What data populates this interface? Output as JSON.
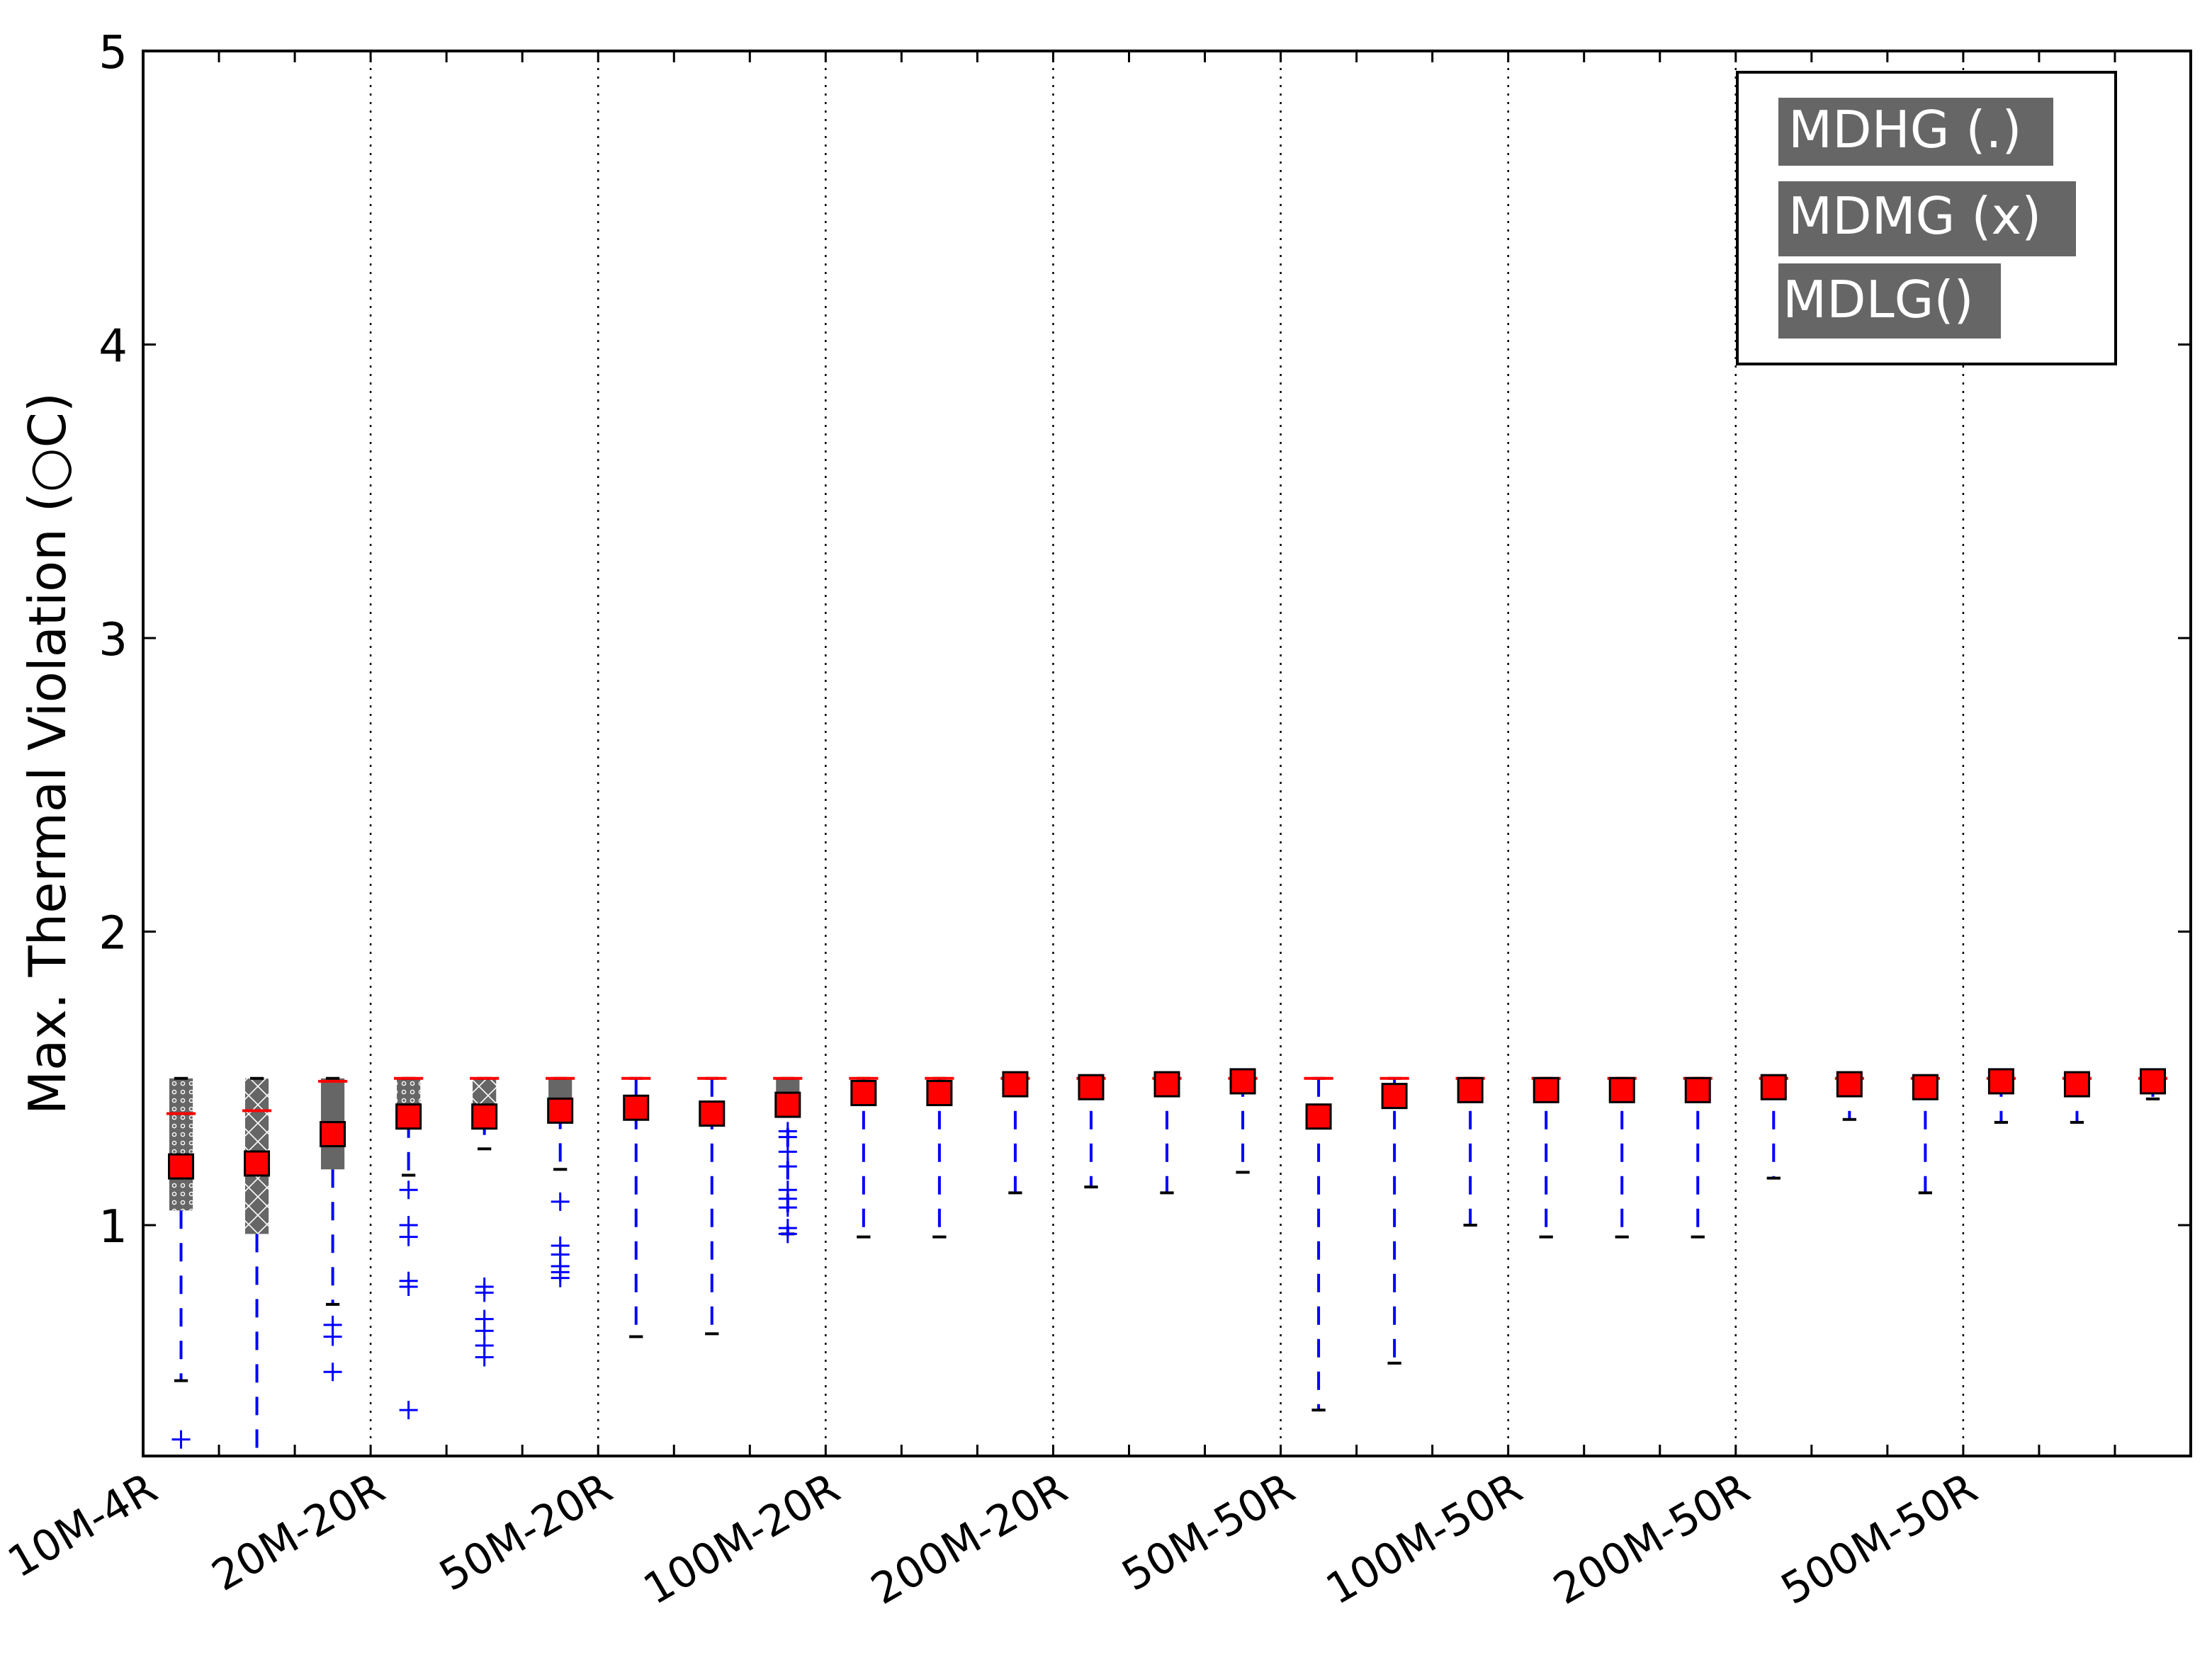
{
  "chart_data": {
    "type": "box",
    "ylabel": "Max. Thermal Violation (○C)",
    "xlabel": "",
    "ylim": [
      0.18,
      5
    ],
    "yticks": [
      1,
      2,
      3,
      4,
      5
    ],
    "grid": "vertical dotted separators between groups",
    "categories": [
      "10M-4R",
      "20M-20R",
      "50M-20R",
      "100M-20R",
      "200M-20R",
      "50M-50R",
      "100M-50R",
      "200M-50R",
      "500M-50R"
    ],
    "legend": {
      "placement": "top-right",
      "entries": [
        "MDHG (.)",
        "MDMG (x)",
        "MDLG()"
      ]
    },
    "series": [
      {
        "name": "MDHG (.)",
        "boxes": [
          {
            "group": "10M-4R",
            "q1": 1.05,
            "median": 1.38,
            "q3": 1.5,
            "wlow": 0.47,
            "whigh": 1.5,
            "mean": 1.2,
            "outliers": [
              0.27
            ]
          },
          {
            "group": "20M-20R",
            "q1": 1.36,
            "median": 1.5,
            "q3": 1.5,
            "wlow": 1.17,
            "whigh": 1.5,
            "mean": 1.37,
            "outliers": [
              1.12,
              1.0,
              0.96,
              0.81,
              0.79,
              0.37
            ]
          },
          {
            "group": "50M-20R",
            "q1": 1.5,
            "median": 1.5,
            "q3": 1.5,
            "wlow": 0.62,
            "whigh": 1.5,
            "mean": 1.4,
            "outliers": []
          },
          {
            "group": "100M-20R",
            "q1": 1.5,
            "median": 1.5,
            "q3": 1.5,
            "wlow": 0.96,
            "whigh": 1.5,
            "mean": 1.45,
            "outliers": []
          },
          {
            "group": "200M-20R",
            "q1": 1.5,
            "median": 1.5,
            "q3": 1.5,
            "wlow": 1.13,
            "whigh": 1.5,
            "mean": 1.47,
            "outliers": []
          },
          {
            "group": "50M-50R",
            "q1": 1.5,
            "median": 1.5,
            "q3": 1.5,
            "wlow": 0.37,
            "whigh": 1.5,
            "mean": 1.37,
            "outliers": []
          },
          {
            "group": "100M-50R",
            "q1": 1.5,
            "median": 1.5,
            "q3": 1.5,
            "wlow": 0.96,
            "whigh": 1.5,
            "mean": 1.46,
            "outliers": []
          },
          {
            "group": "200M-50R",
            "q1": 1.5,
            "median": 1.5,
            "q3": 1.5,
            "wlow": 1.16,
            "whigh": 1.5,
            "mean": 1.47,
            "outliers": []
          },
          {
            "group": "500M-50R",
            "q1": 1.5,
            "median": 1.5,
            "q3": 1.5,
            "wlow": 1.35,
            "whigh": 1.5,
            "mean": 1.49,
            "outliers": []
          }
        ]
      },
      {
        "name": "MDMG (x)",
        "boxes": [
          {
            "group": "10M-4R",
            "q1": 0.97,
            "median": 1.39,
            "q3": 1.5,
            "wlow": 0.18,
            "whigh": 1.5,
            "mean": 1.21,
            "outliers": []
          },
          {
            "group": "20M-20R",
            "q1": 1.37,
            "median": 1.5,
            "q3": 1.5,
            "wlow": 1.26,
            "whigh": 1.5,
            "mean": 1.37,
            "outliers": [
              0.79,
              0.77,
              0.68,
              0.64,
              0.59,
              0.55
            ]
          },
          {
            "group": "50M-20R",
            "q1": 1.5,
            "median": 1.5,
            "q3": 1.5,
            "wlow": 0.63,
            "whigh": 1.5,
            "mean": 1.38,
            "outliers": []
          },
          {
            "group": "100M-20R",
            "q1": 1.5,
            "median": 1.5,
            "q3": 1.5,
            "wlow": 0.96,
            "whigh": 1.5,
            "mean": 1.45,
            "outliers": []
          },
          {
            "group": "200M-20R",
            "q1": 1.5,
            "median": 1.5,
            "q3": 1.5,
            "wlow": 1.11,
            "whigh": 1.5,
            "mean": 1.48,
            "outliers": []
          },
          {
            "group": "50M-50R",
            "q1": 1.5,
            "median": 1.5,
            "q3": 1.5,
            "wlow": 0.53,
            "whigh": 1.5,
            "mean": 1.44,
            "outliers": []
          },
          {
            "group": "100M-50R",
            "q1": 1.5,
            "median": 1.5,
            "q3": 1.5,
            "wlow": 0.96,
            "whigh": 1.5,
            "mean": 1.46,
            "outliers": []
          },
          {
            "group": "200M-50R",
            "q1": 1.5,
            "median": 1.5,
            "q3": 1.5,
            "wlow": 1.36,
            "whigh": 1.5,
            "mean": 1.48,
            "outliers": []
          },
          {
            "group": "500M-50R",
            "q1": 1.5,
            "median": 1.5,
            "q3": 1.5,
            "wlow": 1.35,
            "whigh": 1.5,
            "mean": 1.48,
            "outliers": []
          }
        ]
      },
      {
        "name": "MDLG()",
        "boxes": [
          {
            "group": "10M-4R",
            "q1": 1.19,
            "median": 1.49,
            "q3": 1.5,
            "wlow": 0.73,
            "whigh": 1.5,
            "mean": 1.31,
            "outliers": [
              0.66,
              0.62,
              0.5
            ]
          },
          {
            "group": "20M-20R",
            "q1": 1.39,
            "median": 1.5,
            "q3": 1.5,
            "wlow": 1.19,
            "whigh": 1.5,
            "mean": 1.39,
            "outliers": [
              1.08,
              0.93,
              0.9,
              0.86,
              0.84,
              0.82
            ]
          },
          {
            "group": "50M-20R",
            "q1": 1.44,
            "median": 1.5,
            "q3": 1.5,
            "wlow": 0.97,
            "whigh": 1.5,
            "mean": 1.41,
            "outliers": [
              1.32,
              1.3,
              1.25,
              1.2,
              1.12,
              1.09,
              1.06,
              0.99,
              0.97
            ]
          },
          {
            "group": "100M-20R",
            "q1": 1.5,
            "median": 1.5,
            "q3": 1.5,
            "wlow": 1.11,
            "whigh": 1.5,
            "mean": 1.48,
            "outliers": []
          },
          {
            "group": "200M-20R",
            "q1": 1.5,
            "median": 1.5,
            "q3": 1.5,
            "wlow": 1.18,
            "whigh": 1.5,
            "mean": 1.49,
            "outliers": []
          },
          {
            "group": "50M-50R",
            "q1": 1.5,
            "median": 1.5,
            "q3": 1.5,
            "wlow": 1.0,
            "whigh": 1.5,
            "mean": 1.46,
            "outliers": []
          },
          {
            "group": "100M-50R",
            "q1": 1.5,
            "median": 1.5,
            "q3": 1.5,
            "wlow": 0.96,
            "whigh": 1.5,
            "mean": 1.46,
            "outliers": []
          },
          {
            "group": "200M-50R",
            "q1": 1.5,
            "median": 1.5,
            "q3": 1.5,
            "wlow": 1.11,
            "whigh": 1.5,
            "mean": 1.47,
            "outliers": []
          },
          {
            "group": "500M-50R",
            "q1": 1.5,
            "median": 1.5,
            "q3": 1.5,
            "wlow": 1.43,
            "whigh": 1.5,
            "mean": 1.49,
            "outliers": []
          }
        ]
      }
    ],
    "colors": {
      "box_fill": "#666666",
      "median": "#ff0000",
      "whisker": "#0000ff",
      "cap": "#000000",
      "mean_marker": "#ff0000",
      "legend_fill": "#666666",
      "legend_text": "#ffffff"
    }
  }
}
